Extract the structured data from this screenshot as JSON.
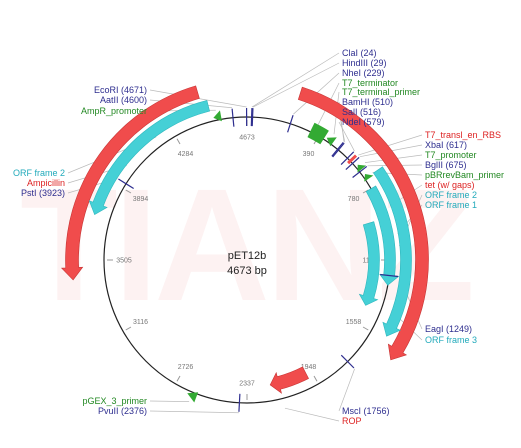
{
  "plasmid": {
    "name": "pET12b",
    "size_label": "4673 bp",
    "total_bp": 4673
  },
  "watermark": "TIANZ",
  "colors": {
    "backbone": "#222222",
    "gene": "#f04c4c",
    "orf": "#45d0d6",
    "feature_green": "#33aa33",
    "site_line": "#2e2e8f",
    "label_blue": "#2e2e8f",
    "label_red": "#dd2222",
    "label_green": "#228822",
    "label_teal": "#22aabb",
    "leader": "#bbbbbb"
  },
  "ticks": [
    "4673",
    "390",
    "780",
    "1169",
    "1558",
    "1948",
    "2337",
    "2726",
    "3116",
    "3505",
    "3894",
    "4284"
  ],
  "sites": [
    {
      "name": "ClaI",
      "pos": 24,
      "text": "ClaI (24)"
    },
    {
      "name": "HindIII",
      "pos": 29,
      "text": "HindIII (29)"
    },
    {
      "name": "NheI",
      "pos": 229,
      "text": "NheI (229)"
    },
    {
      "name": "BamHI",
      "pos": 510,
      "text": "BamHI (510)"
    },
    {
      "name": "SalI",
      "pos": 516,
      "text": "SalI (516)"
    },
    {
      "name": "NdeI",
      "pos": 579,
      "text": "NdeI (579)"
    },
    {
      "name": "XbaI",
      "pos": 617,
      "text": "XbaI (617)"
    },
    {
      "name": "BglII",
      "pos": 675,
      "text": "BglII (675)"
    },
    {
      "name": "EagI",
      "pos": 1249,
      "text": "EagI (1249)"
    },
    {
      "name": "MscI",
      "pos": 1756,
      "text": "MscI (1756)"
    },
    {
      "name": "PvuII",
      "pos": 2376,
      "text": "PvuII (2376)"
    },
    {
      "name": "PstI",
      "pos": 3923,
      "text": "PstI (3923)"
    },
    {
      "name": "AatII",
      "pos": 4600,
      "text": "AatII (4600)"
    },
    {
      "name": "EcoRI",
      "pos": 4671,
      "text": "EcoRI (4671)"
    }
  ],
  "features": [
    {
      "name": "T7_terminator",
      "kind": "green-box",
      "start": 340,
      "end": 420
    },
    {
      "name": "T7_terminal_primer",
      "kind": "green-arrow",
      "start": 430,
      "end": 470,
      "dir": -1
    },
    {
      "name": "T7_transl_en_RBS",
      "kind": "red-tick",
      "start": 600,
      "end": 612
    },
    {
      "name": "T7_promoter",
      "kind": "green-arrow",
      "start": 640,
      "end": 670,
      "dir": -1
    },
    {
      "name": "pBRrevBam_primer",
      "kind": "green-arrow",
      "start": 700,
      "end": 730,
      "dir": -1
    },
    {
      "name": "tet (w/ gaps)",
      "kind": "red-arc",
      "start": 230,
      "end": 1620,
      "dir": 1,
      "r": 175
    },
    {
      "name": "ORF frame 2",
      "kind": "orf",
      "start": 720,
      "end": 1540,
      "dir": 1,
      "r": 159
    },
    {
      "name": "ORF frame 1",
      "kind": "orf",
      "start": 780,
      "end": 1300,
      "dir": 1,
      "r": 143
    },
    {
      "name": "ORF frame 3",
      "kind": "orf",
      "start": 950,
      "end": 1440,
      "dir": 1,
      "r": 127
    },
    {
      "name": "ROP",
      "kind": "red-arc",
      "start": 1980,
      "end": 2200,
      "dir": 1,
      "r": 127
    },
    {
      "name": "pGEX_3_primer",
      "kind": "green-arrow",
      "start": 2600,
      "end": 2650,
      "dir": 1
    },
    {
      "name": "Ampicillin",
      "kind": "red-arc",
      "start": 3420,
      "end": 4460,
      "dir": -1,
      "r": 175
    },
    {
      "name": "ORF frame 2",
      "kind": "orf",
      "start": 3720,
      "end": 4490,
      "dir": -1,
      "r": 159
    },
    {
      "name": "AmpR_promoter",
      "kind": "green-arrow",
      "start": 4500,
      "end": 4540,
      "dir": -1
    }
  ],
  "labels": [
    {
      "text": "ClaI (24)",
      "color": "blue"
    },
    {
      "text": "HindIII (29)",
      "color": "blue"
    },
    {
      "text": "NheI (229)",
      "color": "blue"
    },
    {
      "text": "T7_terminator",
      "color": "green"
    },
    {
      "text": "T7_terminal_primer",
      "color": "green"
    },
    {
      "text": "BamHI (510)",
      "color": "blue"
    },
    {
      "text": "SalI (516)",
      "color": "blue"
    },
    {
      "text": "NdeI (579)",
      "color": "blue"
    },
    {
      "text": "T7_transl_en_RBS",
      "color": "red"
    },
    {
      "text": "XbaI (617)",
      "color": "blue"
    },
    {
      "text": "T7_promoter",
      "color": "green"
    },
    {
      "text": "BglII (675)",
      "color": "blue"
    },
    {
      "text": "pBRrevBam_primer",
      "color": "green"
    },
    {
      "text": "tet (w/ gaps)",
      "color": "red"
    },
    {
      "text": "ORF frame 2",
      "color": "teal"
    },
    {
      "text": "ORF frame 1",
      "color": "teal"
    },
    {
      "text": "EagI (1249)",
      "color": "blue"
    },
    {
      "text": "ORF frame 3",
      "color": "teal"
    },
    {
      "text": "MscI (1756)",
      "color": "blue"
    },
    {
      "text": "ROP",
      "color": "red"
    },
    {
      "text": "pGEX_3_primer",
      "color": "green"
    },
    {
      "text": "PvuII (2376)",
      "color": "blue"
    },
    {
      "text": "ORF frame 2",
      "color": "teal"
    },
    {
      "text": "Ampicillin",
      "color": "red"
    },
    {
      "text": "PstI (3923)",
      "color": "blue"
    },
    {
      "text": "EcoRI (4671)",
      "color": "blue"
    },
    {
      "text": "AatII (4600)",
      "color": "blue"
    },
    {
      "text": "AmpR_promoter",
      "color": "green"
    }
  ]
}
